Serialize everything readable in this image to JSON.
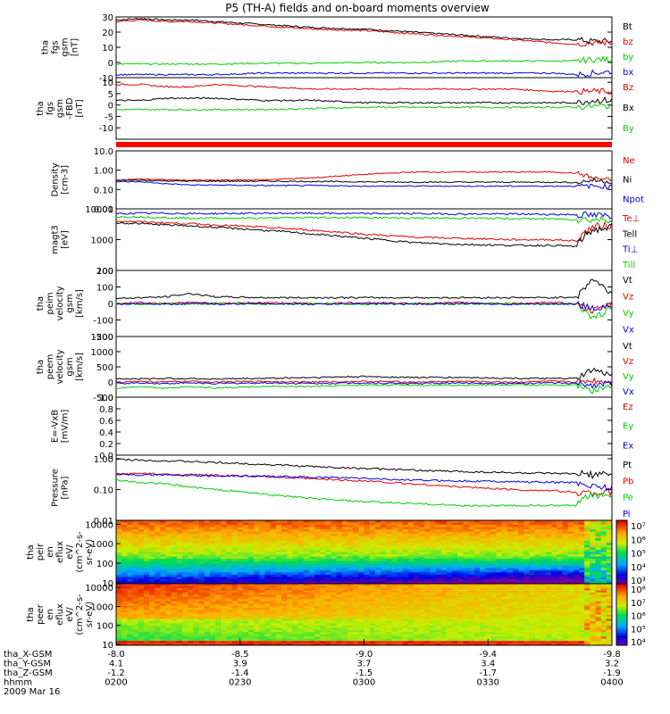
{
  "title": "P5 (TH-A) fields and on-board moments overview",
  "colors": {
    "black": "#000000",
    "red": "#e00000",
    "green": "#00d000",
    "blue": "#0000e0",
    "orange": "#ff8000"
  },
  "chart_data": [
    {
      "type": "line",
      "id": "fgs_gsm",
      "ylabel": [
        "tha",
        "fgs",
        "gsm",
        "[nT]"
      ],
      "ylim": [
        -10,
        30
      ],
      "yticks": [
        "30",
        "20",
        "10",
        "0",
        "-10"
      ],
      "ytick_values": [
        30,
        20,
        10,
        0,
        -10
      ],
      "x": [
        0,
        0.05,
        0.1,
        0.15,
        0.2,
        0.3,
        0.4,
        0.5,
        0.6,
        0.7,
        0.8,
        0.88,
        0.93,
        0.96,
        1.0
      ],
      "series": [
        {
          "name": "Bt",
          "color": "#000000",
          "values": [
            28,
            29,
            28,
            28,
            27,
            25,
            23,
            22,
            20,
            18,
            16,
            15,
            15,
            14,
            14
          ]
        },
        {
          "name": "bz",
          "color": "#e00000",
          "values": [
            27,
            28,
            27,
            27,
            26,
            24,
            22,
            21,
            19,
            17,
            15,
            13,
            12,
            13,
            13
          ]
        },
        {
          "name": "by",
          "color": "#00d000",
          "values": [
            -1,
            -1,
            -1,
            -1,
            -1,
            -0.5,
            -0.5,
            0,
            0,
            1,
            1,
            1,
            1,
            2,
            2
          ]
        },
        {
          "name": "bx",
          "color": "#0000e0",
          "values": [
            -8,
            -8,
            -8,
            -8,
            -8,
            -7,
            -7,
            -7,
            -7,
            -7,
            -7,
            -7,
            -8,
            -7,
            -6
          ]
        }
      ]
    },
    {
      "type": "line",
      "id": "fgs_mfa",
      "ylabel": [
        "tha",
        "fgs",
        "gsm",
        "-FBD",
        "[nT]"
      ],
      "ylim": [
        -15,
        12
      ],
      "yticks": [
        "10",
        "5",
        "0",
        "-5",
        "-10"
      ],
      "ytick_values": [
        10,
        5,
        0,
        -5,
        -10
      ],
      "x": [
        0,
        0.05,
        0.1,
        0.15,
        0.2,
        0.3,
        0.4,
        0.5,
        0.6,
        0.7,
        0.8,
        0.88,
        0.93,
        0.96,
        1.0
      ],
      "series": [
        {
          "name": "Bz",
          "color": "#e00000",
          "values": [
            9,
            9,
            8,
            8,
            9,
            8,
            7,
            7,
            7,
            7,
            7,
            6,
            6,
            6,
            6
          ]
        },
        {
          "name": "Bx",
          "color": "#000000",
          "values": [
            2,
            2,
            3,
            3,
            3,
            2,
            2,
            1,
            1,
            1,
            1,
            1,
            1,
            2,
            2
          ]
        },
        {
          "name": "By",
          "color": "#00d000",
          "values": [
            -2,
            -2,
            -2,
            -2,
            -2,
            -2,
            -1.5,
            -1,
            -1,
            -1,
            -1,
            -1,
            -1,
            -0.5,
            -0.5
          ]
        }
      ]
    },
    {
      "type": "line",
      "id": "density",
      "log": true,
      "ylabel": [
        "Density",
        "[cm-3]"
      ],
      "ylim": [
        0.01,
        10
      ],
      "yticks": [
        "10.0",
        "1.00",
        "0.10",
        "0.01"
      ],
      "ytick_values": [
        10,
        1,
        0.1,
        0.01
      ],
      "x": [
        0,
        0.05,
        0.1,
        0.15,
        0.2,
        0.3,
        0.4,
        0.5,
        0.6,
        0.7,
        0.8,
        0.88,
        0.93,
        0.96,
        1.0
      ],
      "series": [
        {
          "name": "Ne",
          "color": "#e00000",
          "values": [
            0.3,
            0.35,
            0.32,
            0.3,
            0.3,
            0.32,
            0.4,
            0.6,
            0.8,
            0.8,
            0.8,
            0.8,
            0.7,
            0.4,
            0.3
          ]
        },
        {
          "name": "Ni",
          "color": "#000000",
          "values": [
            0.3,
            0.3,
            0.28,
            0.27,
            0.27,
            0.27,
            0.26,
            0.25,
            0.24,
            0.24,
            0.24,
            0.24,
            0.23,
            0.3,
            0.25
          ]
        },
        {
          "name": "Npot",
          "color": "#0000e0",
          "values": [
            0.25,
            0.25,
            0.2,
            0.17,
            0.17,
            0.16,
            0.16,
            0.15,
            0.15,
            0.15,
            0.15,
            0.15,
            0.15,
            0.15,
            0.14
          ]
        }
      ]
    },
    {
      "type": "line",
      "id": "temperature",
      "log": true,
      "ylabel": [
        "magt3",
        "[eV]"
      ],
      "ylim": [
        100,
        10000
      ],
      "yticks": [
        "10000",
        "1000",
        "100"
      ],
      "ytick_values": [
        10000,
        1000,
        100
      ],
      "x": [
        0,
        0.05,
        0.1,
        0.15,
        0.2,
        0.3,
        0.4,
        0.5,
        0.6,
        0.7,
        0.8,
        0.88,
        0.93,
        0.96,
        1.0
      ],
      "series": [
        {
          "name": "Te⊥",
          "color": "#e00000",
          "values": [
            4000,
            3800,
            3500,
            3300,
            3000,
            2500,
            2000,
            1500,
            1200,
            1100,
            1000,
            1000,
            900,
            2500,
            3000
          ]
        },
        {
          "name": "Tell",
          "color": "#000000",
          "values": [
            3500,
            3300,
            3000,
            2800,
            2500,
            2000,
            1500,
            1100,
            800,
            700,
            650,
            650,
            600,
            2000,
            2500
          ]
        },
        {
          "name": "Ti⊥",
          "color": "#0000e0",
          "values": [
            7000,
            7200,
            7200,
            7000,
            7000,
            7200,
            7200,
            7000,
            7000,
            6800,
            6800,
            6600,
            6500,
            6000,
            6000
          ]
        },
        {
          "name": "Till",
          "color": "#00d000",
          "values": [
            5500,
            5500,
            5200,
            5000,
            5000,
            5000,
            5200,
            5200,
            5000,
            5000,
            4800,
            4700,
            4500,
            4500,
            4500
          ]
        }
      ]
    },
    {
      "type": "line",
      "id": "peim_velocity",
      "ylabel": [
        "tha",
        "peim",
        "velocity",
        "gsm",
        "[km/s]"
      ],
      "ylim": [
        -200,
        200
      ],
      "yticks": [
        "200",
        "100",
        "0",
        "-100",
        "-200"
      ],
      "ytick_values": [
        200,
        100,
        0,
        -100,
        -200
      ],
      "x": [
        0,
        0.05,
        0.1,
        0.15,
        0.2,
        0.3,
        0.4,
        0.5,
        0.6,
        0.7,
        0.8,
        0.88,
        0.93,
        0.96,
        1.0
      ],
      "series": [
        {
          "name": "Vt",
          "color": "#000000",
          "values": [
            30,
            35,
            40,
            60,
            40,
            35,
            35,
            35,
            35,
            35,
            35,
            35,
            40,
            150,
            60
          ]
        },
        {
          "name": "Vz",
          "color": "#e00000",
          "values": [
            0,
            5,
            0,
            10,
            0,
            5,
            0,
            5,
            0,
            5,
            0,
            5,
            0,
            -50,
            0
          ]
        },
        {
          "name": "Vy",
          "color": "#00d000",
          "values": [
            0,
            -5,
            0,
            -5,
            0,
            -5,
            0,
            -5,
            0,
            -5,
            0,
            -5,
            0,
            -100,
            -20
          ]
        },
        {
          "name": "Vx",
          "color": "#0000e0",
          "values": [
            -5,
            0,
            -5,
            0,
            -5,
            0,
            -5,
            0,
            -5,
            0,
            -5,
            0,
            -5,
            -30,
            -10
          ]
        }
      ]
    },
    {
      "type": "line",
      "id": "peem_velocity",
      "ylabel": [
        "tha",
        "peem",
        "velocity",
        "gsm",
        "[km/s]"
      ],
      "ylim": [
        -500,
        1500
      ],
      "yticks": [
        "1500",
        "1000",
        "500",
        "0",
        "-500"
      ],
      "ytick_values": [
        1500,
        1000,
        500,
        0,
        -500
      ],
      "x": [
        0,
        0.05,
        0.1,
        0.15,
        0.2,
        0.3,
        0.4,
        0.5,
        0.6,
        0.7,
        0.8,
        0.88,
        0.93,
        0.96,
        1.0
      ],
      "series": [
        {
          "name": "Vt",
          "color": "#000000",
          "values": [
            100,
            100,
            120,
            110,
            100,
            120,
            150,
            180,
            150,
            150,
            120,
            110,
            120,
            400,
            200
          ]
        },
        {
          "name": "Vz",
          "color": "#e00000",
          "values": [
            0,
            20,
            0,
            20,
            0,
            20,
            0,
            20,
            0,
            20,
            0,
            20,
            0,
            50,
            0
          ]
        },
        {
          "name": "Vy",
          "color": "#00d000",
          "values": [
            -200,
            -150,
            -200,
            -150,
            -200,
            -150,
            -150,
            -100,
            -100,
            -100,
            -100,
            -100,
            -100,
            -300,
            -100
          ]
        },
        {
          "name": "Vx",
          "color": "#0000e0",
          "values": [
            -50,
            -30,
            -50,
            -30,
            -50,
            -30,
            -50,
            -30,
            -50,
            -30,
            -50,
            -30,
            -50,
            -100,
            -50
          ]
        }
      ]
    },
    {
      "type": "line",
      "id": "e_vxb",
      "ylabel": [
        "E=-VxB",
        "[mV/m]"
      ],
      "ylim": [
        0,
        1
      ],
      "yticks": [
        "1.0",
        "0.8",
        "0.6",
        "0.4",
        "0.2",
        "0.0"
      ],
      "ytick_values": [
        1,
        0.8,
        0.6,
        0.4,
        0.2,
        0
      ],
      "series": [
        {
          "name": "Ez",
          "color": "#e00000",
          "values": []
        },
        {
          "name": "Ey",
          "color": "#00d000",
          "values": []
        },
        {
          "name": "Ex",
          "color": "#0000e0",
          "values": []
        }
      ]
    },
    {
      "type": "line",
      "id": "pressure",
      "log": true,
      "ylabel": [
        "Pressure",
        "[nPa]"
      ],
      "ylim": [
        0.01,
        1.3
      ],
      "yticks": [
        "1.00",
        "0.10",
        "0.01"
      ],
      "ytick_values": [
        1,
        0.1,
        0.01
      ],
      "x": [
        0,
        0.05,
        0.1,
        0.15,
        0.2,
        0.3,
        0.4,
        0.5,
        0.6,
        0.7,
        0.8,
        0.88,
        0.93,
        0.96,
        1.0
      ],
      "series": [
        {
          "name": "Pt",
          "color": "#000000",
          "values": [
            0.95,
            0.9,
            0.85,
            0.8,
            0.75,
            0.65,
            0.55,
            0.48,
            0.42,
            0.38,
            0.35,
            0.33,
            0.32,
            0.3,
            0.3
          ]
        },
        {
          "name": "Pb",
          "color": "#e00000",
          "values": [
            0.32,
            0.33,
            0.31,
            0.3,
            0.29,
            0.26,
            0.22,
            0.19,
            0.15,
            0.12,
            0.1,
            0.09,
            0.08,
            0.08,
            0.08
          ]
        },
        {
          "name": "Pe",
          "color": "#00d000",
          "values": [
            0.2,
            0.17,
            0.15,
            0.12,
            0.1,
            0.07,
            0.05,
            0.04,
            0.035,
            0.03,
            0.03,
            0.03,
            0.03,
            0.07,
            0.06
          ]
        },
        {
          "name": "Pi",
          "color": "#0000e0",
          "values": [
            0.32,
            0.3,
            0.3,
            0.28,
            0.28,
            0.27,
            0.25,
            0.23,
            0.2,
            0.19,
            0.18,
            0.17,
            0.17,
            0.13,
            0.12
          ]
        }
      ]
    },
    {
      "type": "heatmap",
      "id": "peir_spec",
      "ylabel": [
        "tha",
        "peir",
        "en",
        "eflux",
        "eV/",
        "(cm^2-s-",
        "sr-eV)"
      ],
      "yticks": [
        "10000",
        "1000",
        "100",
        "10"
      ],
      "colorbar_ticks": [
        "10⁷",
        "10⁶",
        "10⁵",
        "10⁴",
        "10³"
      ]
    },
    {
      "type": "heatmap",
      "id": "peer_spec",
      "ylabel": [
        "tha",
        "peer",
        "en",
        "eflux",
        "eV/",
        "(cm^2-s-",
        "sr-eV)"
      ],
      "yticks": [
        "10000",
        "1000",
        "100",
        "10"
      ],
      "colorbar_ticks": [
        "10⁸",
        "10⁷",
        "10⁶",
        "10⁵",
        "10⁴"
      ]
    }
  ],
  "footer": {
    "rows": [
      {
        "label": "tha_X-GSM",
        "values": [
          "-8.0",
          "-8.5",
          "-9.0",
          "-9.4",
          "-9.8"
        ]
      },
      {
        "label": "tha_Y-GSM",
        "values": [
          "4.1",
          "3.9",
          "3.7",
          "3.4",
          "3.2"
        ]
      },
      {
        "label": "tha_Z-GSM",
        "values": [
          "-1.2",
          "-1.4",
          "-1.5",
          "-1.7",
          "-1.9"
        ]
      },
      {
        "label": "hhmm",
        "values": [
          "0200",
          "0230",
          "0300",
          "0330",
          "0400"
        ]
      }
    ],
    "date": "2009 Mar 16"
  }
}
